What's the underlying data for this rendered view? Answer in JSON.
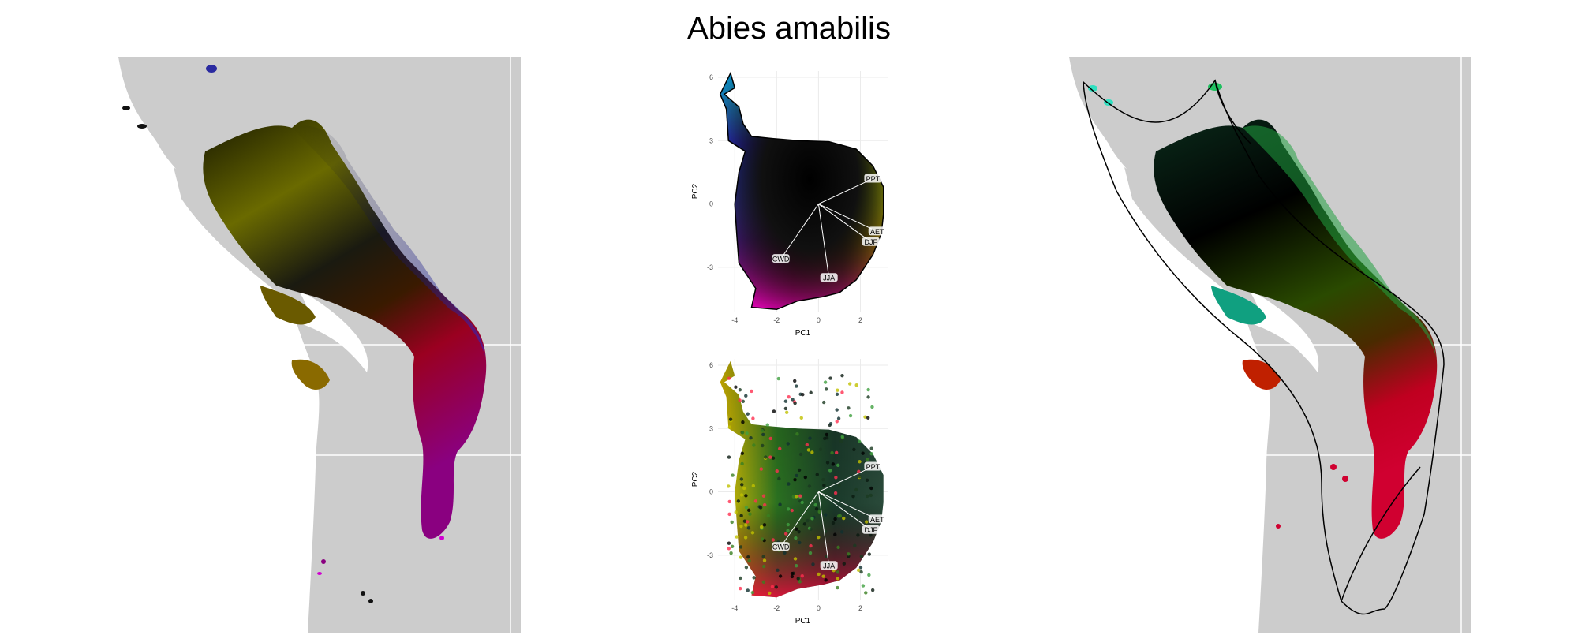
{
  "title": "Abies amabilis",
  "colors": {
    "land": "#cccccc",
    "water": "#ffffff",
    "hull_line": "#000000",
    "biplot_arrow": "#ffffff",
    "grid": "#ebebeb"
  },
  "chart_data": [
    {
      "type": "map",
      "id": "left-map",
      "description_color_scheme": [
        "black",
        "olive",
        "yellow",
        "blue",
        "red",
        "magenta"
      ]
    },
    {
      "type": "scatter",
      "id": "pca-top",
      "xlabel": "PC1",
      "ylabel": "PC2",
      "xlim": [
        -4.8,
        3.3
      ],
      "ylim": [
        -5.1,
        6.3
      ],
      "xticks": [
        -4,
        -2,
        0,
        2
      ],
      "yticks": [
        -3,
        0,
        3,
        6
      ],
      "grid": true,
      "loadings": [
        {
          "label": "PPT",
          "x": 2.6,
          "y": 1.2
        },
        {
          "label": "AET",
          "x": 2.8,
          "y": -1.3
        },
        {
          "label": "DJF",
          "x": 2.5,
          "y": -1.8
        },
        {
          "label": "CWD",
          "x": -1.8,
          "y": -2.6
        },
        {
          "label": "JJA",
          "x": 0.5,
          "y": -3.5
        }
      ]
    },
    {
      "type": "scatter",
      "id": "pca-bottom",
      "xlabel": "PC1",
      "ylabel": "PC2",
      "xlim": [
        -4.8,
        3.3
      ],
      "ylim": [
        -5.1,
        6.3
      ],
      "xticks": [
        -4,
        -2,
        0,
        2
      ],
      "yticks": [
        -3,
        0,
        3,
        6
      ],
      "grid": true,
      "loadings": [
        {
          "label": "PPT",
          "x": 2.6,
          "y": 1.2
        },
        {
          "label": "AET",
          "x": 2.8,
          "y": -1.3
        },
        {
          "label": "DJF",
          "x": 2.5,
          "y": -1.8
        },
        {
          "label": "CWD",
          "x": -1.8,
          "y": -2.6
        },
        {
          "label": "JJA",
          "x": 0.5,
          "y": -3.5
        }
      ]
    },
    {
      "type": "map",
      "id": "right-map",
      "description_color_scheme": [
        "black",
        "cyan",
        "green",
        "yellow",
        "red"
      ]
    }
  ]
}
